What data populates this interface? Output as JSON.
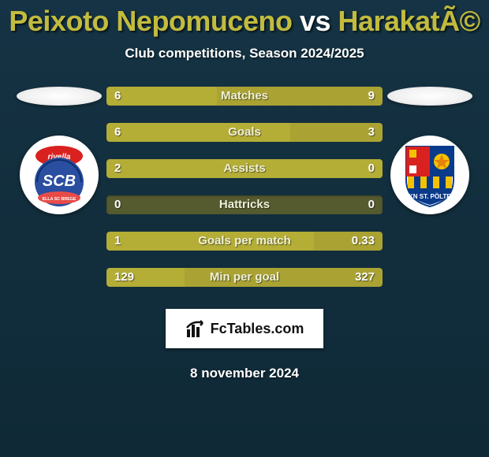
{
  "title": {
    "prefix": "Peixoto Nepomuceno",
    "vs": " vs ",
    "suffix": "HarakatÃ©",
    "prefix_color": "#c2bb3e",
    "vs_color": "#ffffff",
    "suffix_color": "#c2bb3e"
  },
  "subtitle": "Club competitions, Season 2024/2025",
  "bars": {
    "track_color": "#555b2f",
    "left_color": "#b4ad36",
    "right_color": "#aaa333",
    "rows": [
      {
        "label": "Matches",
        "left_val": "6",
        "right_val": "9",
        "left_pct": 40,
        "right_pct": 60
      },
      {
        "label": "Goals",
        "left_val": "6",
        "right_val": "3",
        "left_pct": 66.7,
        "right_pct": 33.3
      },
      {
        "label": "Assists",
        "left_val": "2",
        "right_val": "0",
        "left_pct": 100,
        "right_pct": 0
      },
      {
        "label": "Hattricks",
        "left_val": "0",
        "right_val": "0",
        "left_pct": 0,
        "right_pct": 0
      },
      {
        "label": "Goals per match",
        "left_val": "1",
        "right_val": "0.33",
        "left_pct": 75.2,
        "right_pct": 24.8
      },
      {
        "label": "Min per goal",
        "left_val": "129",
        "right_val": "327",
        "left_pct": 28.3,
        "right_pct": 71.7
      }
    ]
  },
  "brand": {
    "text": "FcTables.com"
  },
  "footer_date": "8 november 2024",
  "badges": {
    "left": {
      "name": "scb-bregenz-badge"
    },
    "right": {
      "name": "skn-st-poelten-badge"
    }
  }
}
